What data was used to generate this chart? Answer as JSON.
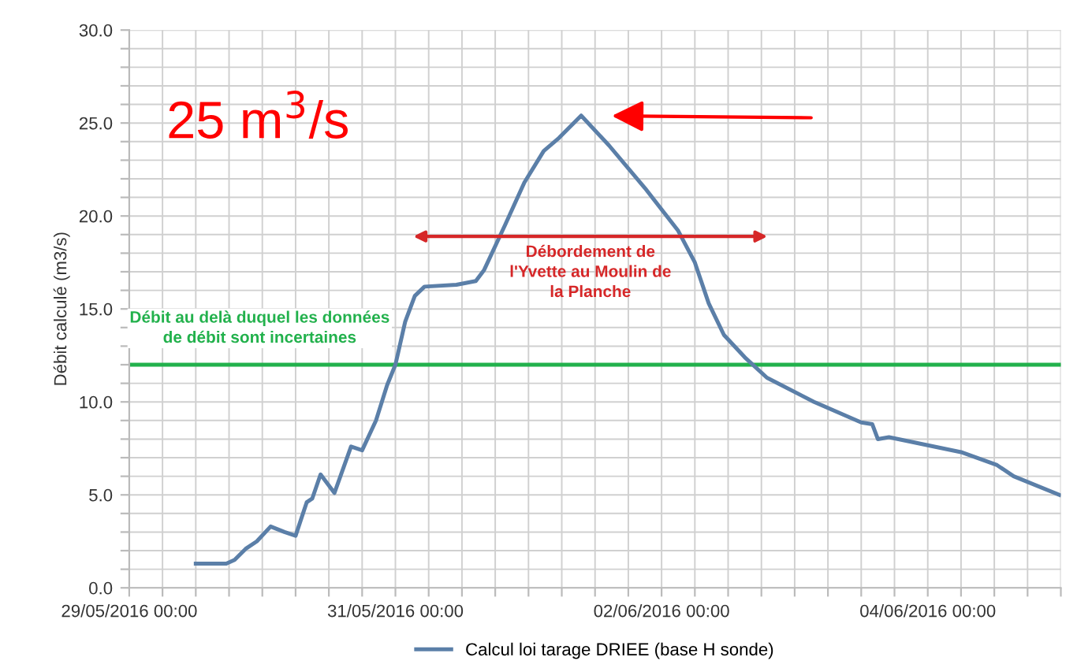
{
  "chart_data": {
    "type": "line",
    "ylabel": "Débit calculé (m3/s)",
    "x": [
      "2016-05-29T12:00",
      "2016-05-29T17:30",
      "2016-05-29T19:00",
      "2016-05-29T21:00",
      "2016-05-29T23:00",
      "2016-05-30T01:30",
      "2016-05-30T04:00",
      "2016-05-30T06:00",
      "2016-05-30T07:00",
      "2016-05-30T08:00",
      "2016-05-30T09:00",
      "2016-05-30T10:30",
      "2016-05-30T13:00",
      "2016-05-30T16:00",
      "2016-05-30T18:00",
      "2016-05-30T20:30",
      "2016-05-30T22:30",
      "2016-05-31T00:00",
      "2016-05-31T01:45",
      "2016-05-31T03:30",
      "2016-05-31T05:15",
      "2016-05-31T11:00",
      "2016-05-31T14:30",
      "2016-05-31T16:00",
      "2016-05-31T19:45",
      "2016-05-31T23:15",
      "2016-06-01T02:45",
      "2016-06-01T05:30",
      "2016-06-01T09:30",
      "2016-06-01T14:30",
      "2016-06-01T21:00",
      "2016-06-02T03:00",
      "2016-06-02T06:00",
      "2016-06-02T08:30",
      "2016-06-02T11:15",
      "2016-06-02T15:00",
      "2016-06-02T19:00",
      "2016-06-03T03:30",
      "2016-06-03T12:00",
      "2016-06-03T14:00",
      "2016-06-03T15:00",
      "2016-06-03T17:00",
      "2016-06-04T06:00",
      "2016-06-04T12:30",
      "2016-06-04T15:30",
      "2016-06-04T23:45"
    ],
    "series": [
      {
        "name": "Calcul loi tarage DRIEE (base H sonde)",
        "color": "#5b7fa8",
        "values": [
          1.3,
          1.3,
          1.5,
          2.1,
          2.5,
          3.3,
          3.0,
          2.8,
          3.7,
          4.6,
          4.8,
          6.1,
          5.1,
          7.6,
          7.4,
          9.0,
          10.9,
          12.0,
          14.3,
          15.7,
          16.2,
          16.3,
          16.5,
          17.1,
          19.5,
          21.8,
          23.5,
          24.2,
          25.4,
          23.8,
          21.5,
          19.2,
          17.5,
          15.3,
          13.6,
          12.4,
          11.3,
          10.0,
          8.9,
          8.8,
          8.0,
          8.1,
          7.3,
          6.6,
          6.0,
          5.0
        ]
      }
    ],
    "xlim": [
      "2016-05-29",
      "2016-06-05"
    ],
    "xticks": [
      {
        "value": "2016-05-29",
        "label": "29/05/2016 00:00"
      },
      {
        "value": "2016-05-29T06:00",
        "label": null
      },
      {
        "value": "2016-05-29T12:00",
        "label": null
      },
      {
        "value": "2016-05-29T18:00",
        "label": null
      },
      {
        "value": "2016-05-30",
        "label": null
      },
      {
        "value": "2016-05-30T06:00",
        "label": null
      },
      {
        "value": "2016-05-30T12:00",
        "label": null
      },
      {
        "value": "2016-05-30T18:00",
        "label": null
      },
      {
        "value": "2016-05-31",
        "label": "31/05/2016 00:00"
      },
      {
        "value": "2016-05-31T06:00",
        "label": null
      },
      {
        "value": "2016-05-31T12:00",
        "label": null
      },
      {
        "value": "2016-05-31T18:00",
        "label": null
      },
      {
        "value": "2016-06-01",
        "label": null
      },
      {
        "value": "2016-06-01T06:00",
        "label": null
      },
      {
        "value": "2016-06-01T12:00",
        "label": null
      },
      {
        "value": "2016-06-01T18:00",
        "label": null
      },
      {
        "value": "2016-06-02",
        "label": "02/06/2016 00:00"
      },
      {
        "value": "2016-06-02T06:00",
        "label": null
      },
      {
        "value": "2016-06-02T12:00",
        "label": null
      },
      {
        "value": "2016-06-02T18:00",
        "label": null
      },
      {
        "value": "2016-06-03",
        "label": null
      },
      {
        "value": "2016-06-03T06:00",
        "label": null
      },
      {
        "value": "2016-06-03T12:00",
        "label": null
      },
      {
        "value": "2016-06-03T18:00",
        "label": null
      },
      {
        "value": "2016-06-04",
        "label": "04/06/2016 00:00"
      },
      {
        "value": "2016-06-04T06:00",
        "label": null
      },
      {
        "value": "2016-06-04T12:00",
        "label": null
      },
      {
        "value": "2016-06-04T18:00",
        "label": null
      },
      {
        "value": "2016-06-05",
        "label": null
      }
    ],
    "ylim": [
      0,
      30
    ],
    "yticks": [
      {
        "value": 0,
        "label": "0.0"
      },
      {
        "value": 1,
        "label": null
      },
      {
        "value": 2,
        "label": null
      },
      {
        "value": 3,
        "label": null
      },
      {
        "value": 4,
        "label": null
      },
      {
        "value": 5,
        "label": "5.0"
      },
      {
        "value": 6,
        "label": null
      },
      {
        "value": 7,
        "label": null
      },
      {
        "value": 8,
        "label": null
      },
      {
        "value": 9,
        "label": null
      },
      {
        "value": 10,
        "label": "10.0"
      },
      {
        "value": 11,
        "label": null
      },
      {
        "value": 12,
        "label": null
      },
      {
        "value": 13,
        "label": null
      },
      {
        "value": 14,
        "label": null
      },
      {
        "value": 15,
        "label": "15.0"
      },
      {
        "value": 16,
        "label": null
      },
      {
        "value": 17,
        "label": null
      },
      {
        "value": 18,
        "label": null
      },
      {
        "value": 19,
        "label": null
      },
      {
        "value": 20,
        "label": "20.0"
      },
      {
        "value": 21,
        "label": null
      },
      {
        "value": 22,
        "label": null
      },
      {
        "value": 23,
        "label": null
      },
      {
        "value": 24,
        "label": null
      },
      {
        "value": 25,
        "label": "25.0"
      },
      {
        "value": 26,
        "label": null
      },
      {
        "value": 27,
        "label": null
      },
      {
        "value": 28,
        "label": null
      },
      {
        "value": 29,
        "label": null
      },
      {
        "value": 30,
        "label": "30.0"
      }
    ],
    "grid": true,
    "legend": "bottom",
    "line_style": "solid",
    "ref_lines": [
      {
        "axis": "y",
        "value": 12,
        "label": "Débit au delà duquel les données de débit sont incertaines",
        "color": "#22b14c"
      }
    ],
    "annotations": [
      "25 m$^{3}$/s",
      "Débordement de l'Yvette au Moulin de la Planche"
    ]
  }
}
